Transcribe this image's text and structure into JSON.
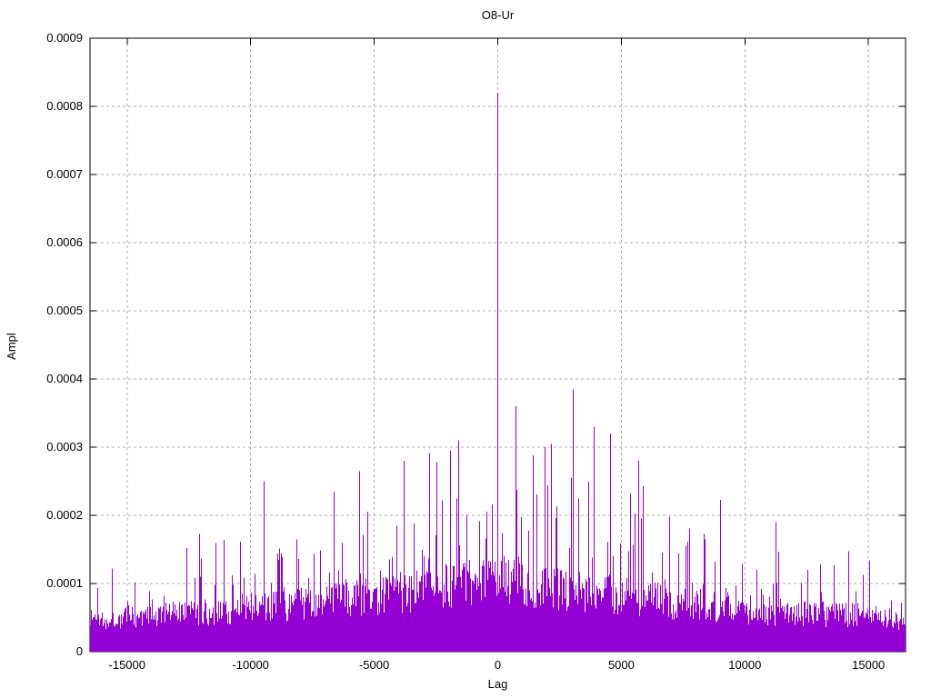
{
  "chart_data": {
    "type": "impulse",
    "title": "O8-Ur",
    "xlabel": "Lag",
    "ylabel": "Ampl",
    "xlim": [
      -16500,
      16500
    ],
    "ylim": [
      0,
      0.0009
    ],
    "xticks": [
      -15000,
      -10000,
      -5000,
      0,
      5000,
      10000,
      15000
    ],
    "xtick_labels": [
      "-15000",
      "-10000",
      "-5000",
      "0",
      "5000",
      "10000",
      "15000"
    ],
    "yticks": [
      0,
      0.0001,
      0.0002,
      0.0003,
      0.0004,
      0.0005,
      0.0006,
      0.0007,
      0.0008,
      0.0009
    ],
    "ytick_labels": [
      "0",
      "0.0001",
      "0.0002",
      "0.0003",
      "0.0004",
      "0.0005",
      "0.0006",
      "0.0007",
      "0.0008",
      "0.0009"
    ],
    "grid": true,
    "legend_position": "none",
    "colors": {
      "series": "#9400d3",
      "grid": "#b0b0b0",
      "border": "#000000",
      "background": "#ffffff",
      "text": "#000000"
    },
    "main_peak": {
      "lag": 0,
      "ampl": 0.00082
    },
    "notable_peaks": [
      {
        "lag": 730,
        "ampl": 0.00036
      },
      {
        "lag": 1900,
        "ampl": 0.0003
      },
      {
        "lag": 2170,
        "ampl": 0.000305
      },
      {
        "lag": 3060,
        "ampl": 0.000385
      },
      {
        "lag": 3900,
        "ampl": 0.00033
      },
      {
        "lag": 4550,
        "ampl": 0.00032
      },
      {
        "lag": 5720,
        "ampl": 0.00028
      },
      {
        "lag": 9000,
        "ampl": 0.000223
      },
      {
        "lag": 11260,
        "ampl": 0.00019
      },
      {
        "lag": -1580,
        "ampl": 0.00031
      },
      {
        "lag": -1900,
        "ampl": 0.000295
      },
      {
        "lag": -3780,
        "ampl": 0.00028
      },
      {
        "lag": -5600,
        "ampl": 0.000265
      },
      {
        "lag": -6640,
        "ampl": 0.000235
      },
      {
        "lag": -9450,
        "ampl": 0.00025
      }
    ],
    "noise_envelope": {
      "edge_ampl": 7e-05,
      "center_ampl": 0.00015,
      "shape_exp": 1.5,
      "min_frac": 0.45,
      "rand_frac": 0.5,
      "tail_frac": 1.35,
      "tail_exp": 11,
      "seed": 1337,
      "columns": 897
    }
  }
}
